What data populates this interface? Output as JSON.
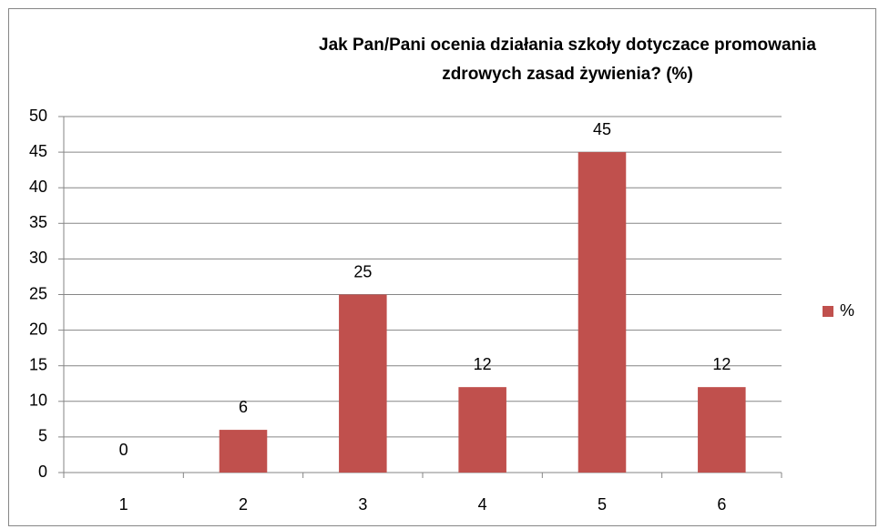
{
  "chart_data": {
    "type": "bar",
    "title": [
      "Jak Pan/Pani ocenia działania szkoły dotyczace promowania",
      "zdrowych zasad żywienia? (%)"
    ],
    "categories": [
      "1",
      "2",
      "3",
      "4",
      "5",
      "6"
    ],
    "series": [
      {
        "name": "%",
        "color": "#c0504d",
        "values": [
          0,
          6,
          25,
          12,
          45,
          12
        ]
      }
    ],
    "ylim": [
      0,
      50
    ],
    "yticks": [
      0,
      5,
      10,
      15,
      20,
      25,
      30,
      35,
      40,
      45,
      50
    ],
    "grid": true,
    "legend": "right",
    "data_labels": true
  }
}
